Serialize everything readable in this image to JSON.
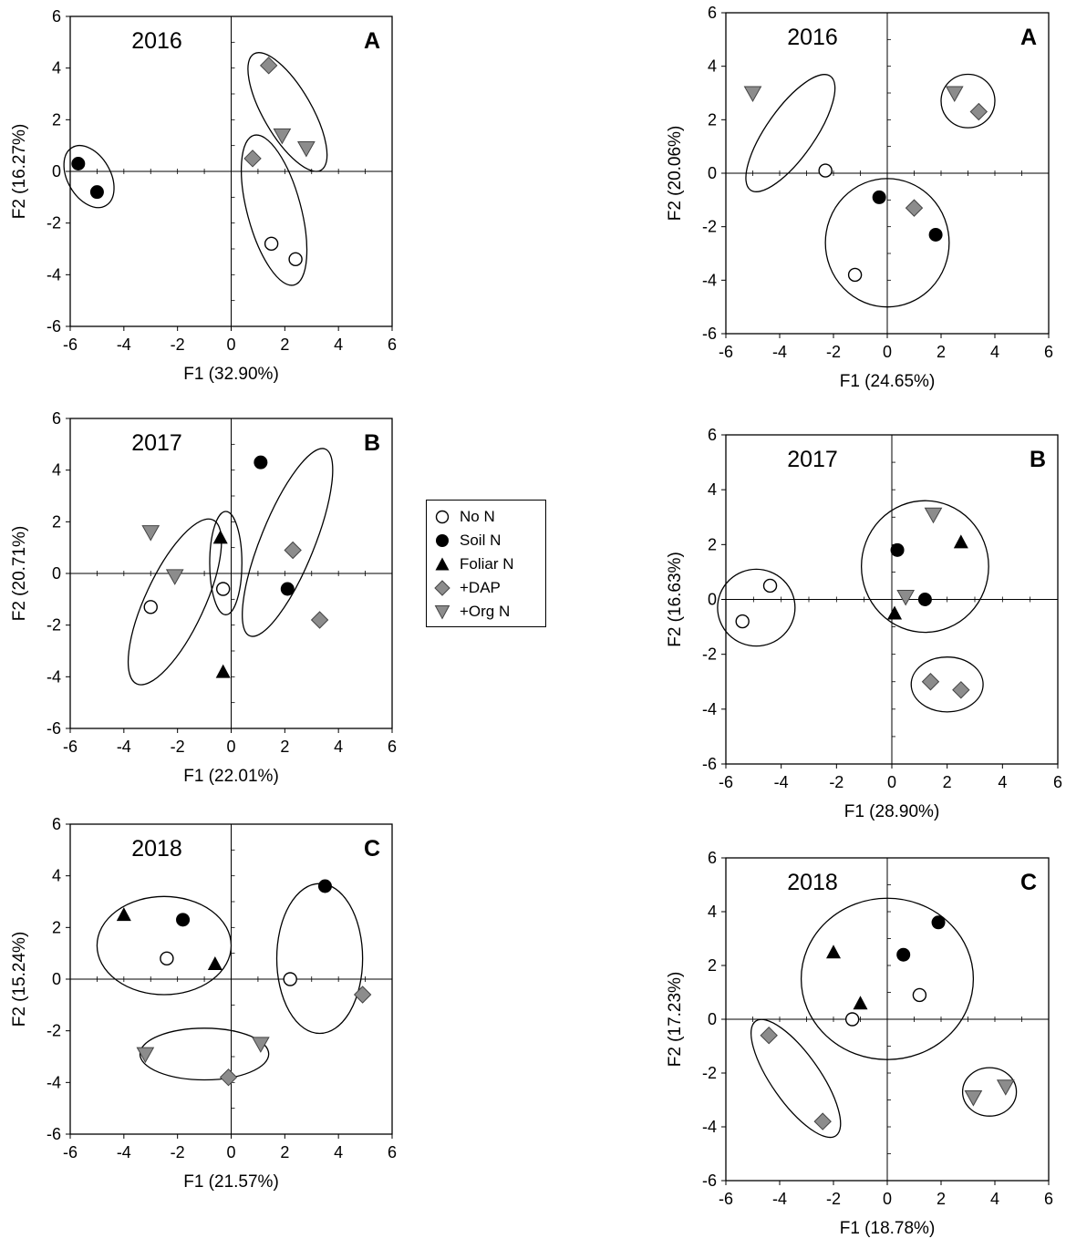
{
  "colors": {
    "axis": "#000000",
    "zero_line": "#000000",
    "black_fill": "#000000",
    "gray_fill": "#8c8c8c",
    "white_fill": "#ffffff"
  },
  "legend": {
    "items": [
      {
        "label": "No N",
        "marker": "circle-open"
      },
      {
        "label": "Soil N",
        "marker": "circle-filled"
      },
      {
        "label": "Foliar N",
        "marker": "triangle-up"
      },
      {
        "label": "+DAP",
        "marker": "diamond"
      },
      {
        "label": "+Org N",
        "marker": "triangle-down"
      }
    ]
  },
  "chart_data": [
    {
      "type": "scatter",
      "year": "2016",
      "panel": "A",
      "xlabel": "F1 (32.90%)",
      "ylabel": "F2 (16.27%)",
      "xlim": [
        -6,
        6
      ],
      "ylim": [
        -6,
        6
      ],
      "xticks": [
        -6,
        -4,
        -2,
        0,
        2,
        4,
        6
      ],
      "yticks": [
        -6,
        -4,
        -2,
        0,
        2,
        4,
        6
      ],
      "points": [
        {
          "x": -5.7,
          "y": 0.3,
          "marker": "circle-filled"
        },
        {
          "x": -5.0,
          "y": -0.8,
          "marker": "circle-filled"
        },
        {
          "x": 1.4,
          "y": 4.1,
          "marker": "diamond"
        },
        {
          "x": 1.9,
          "y": 1.4,
          "marker": "triangle-down"
        },
        {
          "x": 2.8,
          "y": 0.9,
          "marker": "triangle-down"
        },
        {
          "x": 0.8,
          "y": 0.5,
          "marker": "diamond"
        },
        {
          "x": 1.5,
          "y": -2.8,
          "marker": "circle-open"
        },
        {
          "x": 2.4,
          "y": -3.4,
          "marker": "circle-open"
        }
      ],
      "ellipses": [
        {
          "cx": -5.3,
          "cy": -0.2,
          "rx": 0.8,
          "ry": 1.3,
          "angle": 30
        },
        {
          "cx": 2.1,
          "cy": 2.3,
          "rx": 0.9,
          "ry": 2.6,
          "angle": 30
        },
        {
          "cx": 1.6,
          "cy": -1.5,
          "rx": 1.0,
          "ry": 3.0,
          "angle": 15
        }
      ]
    },
    {
      "type": "scatter",
      "year": "2017",
      "panel": "B",
      "xlabel": "F1 (22.01%)",
      "ylabel": "F2 (20.71%)",
      "xlim": [
        -6,
        6
      ],
      "ylim": [
        -6,
        6
      ],
      "xticks": [
        -6,
        -4,
        -2,
        0,
        2,
        4,
        6
      ],
      "yticks": [
        -6,
        -4,
        -2,
        0,
        2,
        4,
        6
      ],
      "points": [
        {
          "x": 1.1,
          "y": 4.3,
          "marker": "circle-filled"
        },
        {
          "x": -3.0,
          "y": 1.6,
          "marker": "triangle-down"
        },
        {
          "x": -2.1,
          "y": -0.1,
          "marker": "triangle-down"
        },
        {
          "x": -0.4,
          "y": 1.4,
          "marker": "triangle-up"
        },
        {
          "x": -0.3,
          "y": -0.6,
          "marker": "circle-open"
        },
        {
          "x": 2.3,
          "y": 0.9,
          "marker": "diamond"
        },
        {
          "x": 2.1,
          "y": -0.6,
          "marker": "circle-filled"
        },
        {
          "x": -3.0,
          "y": -1.3,
          "marker": "circle-open"
        },
        {
          "x": 3.3,
          "y": -1.8,
          "marker": "diamond"
        },
        {
          "x": -0.3,
          "y": -3.8,
          "marker": "triangle-up"
        }
      ],
      "ellipses": [
        {
          "cx": -2.1,
          "cy": -1.1,
          "rx": 1.1,
          "ry": 3.5,
          "angle": -25
        },
        {
          "cx": -0.2,
          "cy": 0.4,
          "rx": 0.6,
          "ry": 2.0,
          "angle": 0
        },
        {
          "cx": 2.1,
          "cy": 1.2,
          "rx": 1.0,
          "ry": 3.9,
          "angle": -22
        }
      ]
    },
    {
      "type": "scatter",
      "year": "2018",
      "panel": "C",
      "xlabel": "F1 (21.57%)",
      "ylabel": "F2 (15.24%)",
      "xlim": [
        -6,
        6
      ],
      "ylim": [
        -6,
        6
      ],
      "xticks": [
        -6,
        -4,
        -2,
        0,
        2,
        4,
        6
      ],
      "yticks": [
        -6,
        -4,
        -2,
        0,
        2,
        4,
        6
      ],
      "points": [
        {
          "x": -4.0,
          "y": 2.5,
          "marker": "triangle-up"
        },
        {
          "x": -1.8,
          "y": 2.3,
          "marker": "circle-filled"
        },
        {
          "x": -2.4,
          "y": 0.8,
          "marker": "circle-open"
        },
        {
          "x": -0.6,
          "y": 0.6,
          "marker": "triangle-up"
        },
        {
          "x": 3.5,
          "y": 3.6,
          "marker": "circle-filled"
        },
        {
          "x": 2.2,
          "y": 0.0,
          "marker": "circle-open"
        },
        {
          "x": 4.9,
          "y": -0.6,
          "marker": "diamond"
        },
        {
          "x": -3.2,
          "y": -2.9,
          "marker": "triangle-down"
        },
        {
          "x": 1.1,
          "y": -2.5,
          "marker": "triangle-down"
        },
        {
          "x": -0.1,
          "y": -3.8,
          "marker": "diamond"
        }
      ],
      "ellipses": [
        {
          "cx": -2.5,
          "cy": 1.3,
          "rx": 2.5,
          "ry": 1.9,
          "angle": 0
        },
        {
          "cx": 3.3,
          "cy": 0.8,
          "rx": 1.6,
          "ry": 2.9,
          "angle": 0
        },
        {
          "cx": -1.0,
          "cy": -2.9,
          "rx": 2.4,
          "ry": 1.0,
          "angle": 0
        }
      ]
    },
    {
      "type": "scatter",
      "year": "2016",
      "panel": "A",
      "xlabel": "F1 (24.65%)",
      "ylabel": "F2 (20.06%)",
      "xlim": [
        -6,
        6
      ],
      "ylim": [
        -6,
        6
      ],
      "xticks": [
        -6,
        -4,
        -2,
        0,
        2,
        4,
        6
      ],
      "yticks": [
        -6,
        -4,
        -2,
        0,
        2,
        4,
        6
      ],
      "points": [
        {
          "x": -5.0,
          "y": 3.0,
          "marker": "triangle-down"
        },
        {
          "x": -2.3,
          "y": 0.1,
          "marker": "circle-open"
        },
        {
          "x": 2.5,
          "y": 3.0,
          "marker": "triangle-down"
        },
        {
          "x": 3.4,
          "y": 2.3,
          "marker": "diamond"
        },
        {
          "x": -0.3,
          "y": -0.9,
          "marker": "circle-filled"
        },
        {
          "x": 1.0,
          "y": -1.3,
          "marker": "diamond"
        },
        {
          "x": 1.8,
          "y": -2.3,
          "marker": "circle-filled"
        },
        {
          "x": -1.2,
          "y": -3.8,
          "marker": "circle-open"
        }
      ],
      "ellipses": [
        {
          "cx": -3.6,
          "cy": 1.5,
          "rx": 0.9,
          "ry": 2.6,
          "angle": -35
        },
        {
          "cx": 3.0,
          "cy": 2.7,
          "rx": 1.0,
          "ry": 1.0,
          "angle": 0
        },
        {
          "cx": 0.0,
          "cy": -2.6,
          "rx": 2.3,
          "ry": 2.4,
          "angle": 0
        }
      ]
    },
    {
      "type": "scatter",
      "year": "2017",
      "panel": "B",
      "xlabel": "F1 (28.90%)",
      "ylabel": "F2 (16.63%)",
      "xlim": [
        -6,
        6
      ],
      "ylim": [
        -6,
        6
      ],
      "xticks": [
        -6,
        -4,
        -2,
        0,
        2,
        4,
        6
      ],
      "yticks": [
        -6,
        -4,
        -2,
        0,
        2,
        4,
        6
      ],
      "points": [
        {
          "x": -4.4,
          "y": 0.5,
          "marker": "circle-open"
        },
        {
          "x": -5.4,
          "y": -0.8,
          "marker": "circle-open"
        },
        {
          "x": 1.5,
          "y": 3.1,
          "marker": "triangle-down"
        },
        {
          "x": 2.5,
          "y": 2.1,
          "marker": "triangle-up"
        },
        {
          "x": 0.2,
          "y": 1.8,
          "marker": "circle-filled"
        },
        {
          "x": 0.5,
          "y": 0.1,
          "marker": "triangle-down"
        },
        {
          "x": 1.2,
          "y": 0.0,
          "marker": "circle-filled"
        },
        {
          "x": 0.1,
          "y": -0.5,
          "marker": "triangle-up"
        },
        {
          "x": 1.4,
          "y": -3.0,
          "marker": "diamond"
        },
        {
          "x": 2.5,
          "y": -3.3,
          "marker": "diamond"
        }
      ],
      "ellipses": [
        {
          "cx": -4.9,
          "cy": -0.3,
          "rx": 1.4,
          "ry": 1.4,
          "angle": 0
        },
        {
          "cx": 1.2,
          "cy": 1.2,
          "rx": 2.3,
          "ry": 2.4,
          "angle": 0
        },
        {
          "cx": 2.0,
          "cy": -3.1,
          "rx": 1.3,
          "ry": 1.0,
          "angle": 0
        }
      ]
    },
    {
      "type": "scatter",
      "year": "2018",
      "panel": "C",
      "xlabel": "F1 (18.78%)",
      "ylabel": "F2 (17.23%)",
      "xlim": [
        -6,
        6
      ],
      "ylim": [
        -6,
        6
      ],
      "xticks": [
        -6,
        -4,
        -2,
        0,
        2,
        4,
        6
      ],
      "yticks": [
        -6,
        -4,
        -2,
        0,
        2,
        4,
        6
      ],
      "points": [
        {
          "x": -2.0,
          "y": 2.5,
          "marker": "triangle-up"
        },
        {
          "x": 1.9,
          "y": 3.6,
          "marker": "circle-filled"
        },
        {
          "x": 0.6,
          "y": 2.4,
          "marker": "circle-filled"
        },
        {
          "x": 1.2,
          "y": 0.9,
          "marker": "circle-open"
        },
        {
          "x": -1.0,
          "y": 0.6,
          "marker": "triangle-up"
        },
        {
          "x": -1.3,
          "y": 0.0,
          "marker": "circle-open"
        },
        {
          "x": -4.4,
          "y": -0.6,
          "marker": "diamond"
        },
        {
          "x": -2.4,
          "y": -3.8,
          "marker": "diamond"
        },
        {
          "x": 3.2,
          "y": -2.9,
          "marker": "triangle-down"
        },
        {
          "x": 4.4,
          "y": -2.5,
          "marker": "triangle-down"
        }
      ],
      "ellipses": [
        {
          "cx": 0.0,
          "cy": 1.5,
          "rx": 3.2,
          "ry": 3.0,
          "angle": 0
        },
        {
          "cx": -3.4,
          "cy": -2.2,
          "rx": 0.9,
          "ry": 2.6,
          "angle": 35
        },
        {
          "cx": 3.8,
          "cy": -2.7,
          "rx": 1.0,
          "ry": 0.9,
          "angle": 0
        }
      ]
    }
  ]
}
